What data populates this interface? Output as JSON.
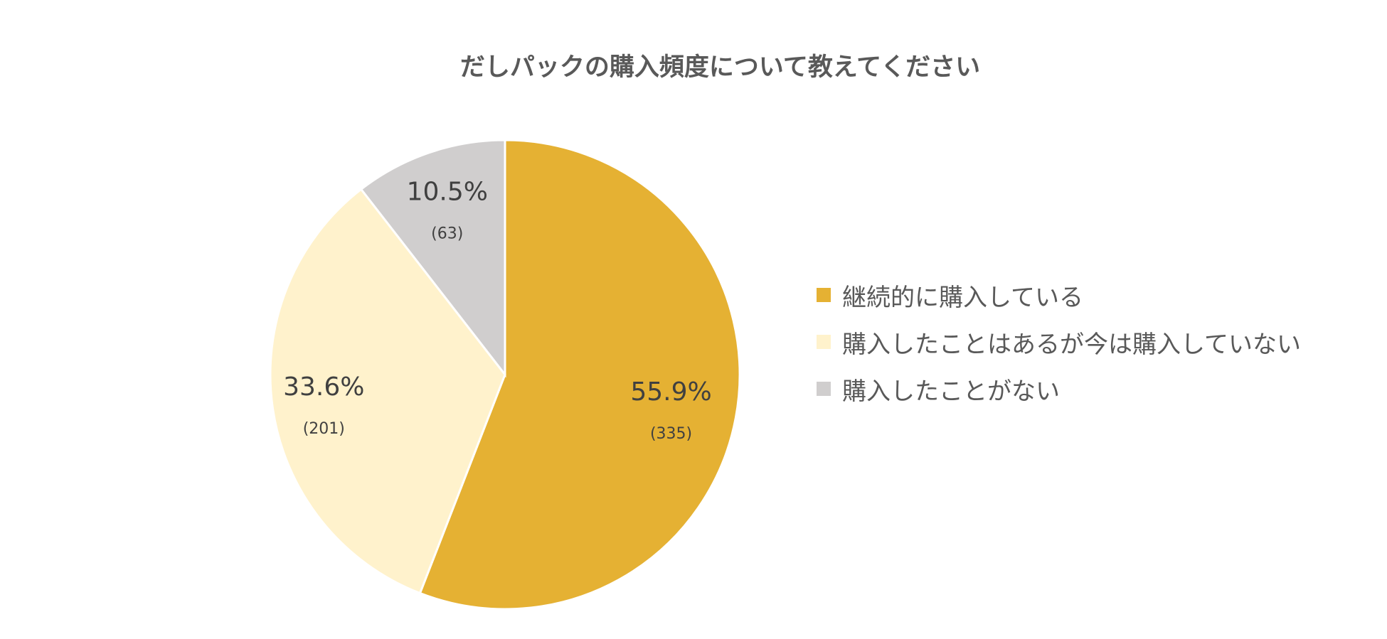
{
  "chart_data": {
    "type": "pie",
    "title": "だしパックの購入頻度について教えてください",
    "categories": [
      "継続的に購入している",
      "購入したことはあるが今は購入していない",
      "購入したことがない"
    ],
    "values": [
      55.9,
      33.6,
      10.5
    ],
    "counts": [
      "(335)",
      "(201)",
      "(63)"
    ],
    "value_labels": [
      "55.9%",
      "33.6%",
      "10.5%"
    ],
    "colors": [
      "#E5B133",
      "#FFF2CC",
      "#D0CECE"
    ],
    "legend_position": "right",
    "start_angle_deg": 0,
    "direction": "clockwise"
  }
}
